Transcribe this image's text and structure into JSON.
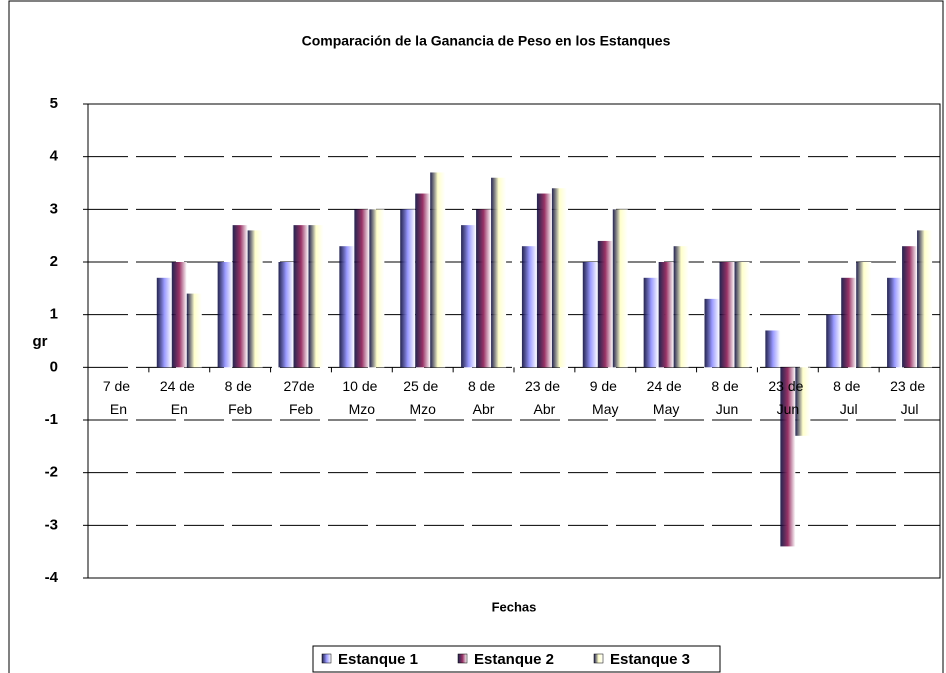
{
  "chart_data": {
    "type": "bar",
    "title": "Comparación de la Ganancia de Peso en los Estanques",
    "x_label": "Fechas",
    "y_label": "gr",
    "categories": [
      "7 de En",
      "24 de En",
      "8 de Feb",
      "27de Feb",
      "10 de Mzo",
      "25 de Mzo",
      "8 de Abr",
      "23 de Abr",
      "9 de May",
      "24 de May",
      "8 de Jun",
      "23 de Jun",
      "8 de Jul",
      "23 de Jul"
    ],
    "series": [
      {
        "name": "Estanque 1",
        "color": "#9999ff",
        "values": [
          0,
          1.7,
          2.0,
          2.0,
          2.3,
          3.0,
          2.7,
          2.3,
          2.0,
          1.7,
          1.3,
          0.7,
          1.0,
          1.7
        ]
      },
      {
        "name": "Estanque 2",
        "color": "#993366",
        "values": [
          0,
          2.0,
          2.7,
          2.7,
          3.0,
          3.3,
          3.0,
          3.3,
          2.4,
          2.0,
          2.0,
          -3.4,
          1.7,
          2.3
        ]
      },
      {
        "name": "Estanque 3",
        "color": "#ffffcc",
        "values": [
          0,
          1.4,
          2.6,
          2.7,
          3.0,
          3.7,
          3.6,
          3.4,
          3.0,
          2.3,
          2.0,
          -1.3,
          2.0,
          2.6
        ]
      }
    ],
    "ylim": [
      -4,
      5
    ],
    "yticks": [
      -4,
      -3,
      -2,
      -1,
      0,
      1,
      2,
      3,
      4,
      5
    ],
    "grid": true,
    "legend": "bottom"
  }
}
